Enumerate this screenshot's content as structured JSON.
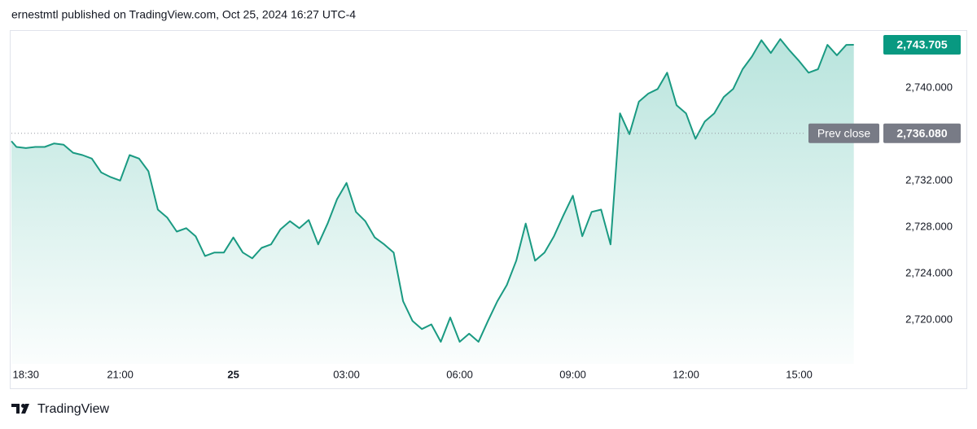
{
  "header": "ernestmtl published on TradingView.com, Oct 25, 2024 16:27 UTC-4",
  "footer": "TradingView",
  "chart_data": {
    "type": "area",
    "color": "#1a9a82",
    "x": [
      "18:07",
      "18:15",
      "18:30",
      "18:45",
      "19:00",
      "19:15",
      "19:30",
      "19:45",
      "20:00",
      "20:15",
      "20:30",
      "20:45",
      "21:00",
      "21:15",
      "21:30",
      "21:45",
      "22:00",
      "22:15",
      "22:30",
      "22:45",
      "23:00",
      "23:15",
      "23:30",
      "23:45",
      "00:00",
      "00:15",
      "00:30",
      "00:45",
      "01:00",
      "01:15",
      "01:30",
      "01:45",
      "02:00",
      "02:15",
      "02:30",
      "02:45",
      "03:00",
      "03:15",
      "03:30",
      "03:45",
      "04:00",
      "04:15",
      "04:30",
      "04:45",
      "05:00",
      "05:15",
      "05:30",
      "05:45",
      "06:00",
      "06:15",
      "06:30",
      "06:45",
      "07:00",
      "07:15",
      "07:30",
      "07:45",
      "08:00",
      "08:15",
      "08:30",
      "08:45",
      "09:00",
      "09:15",
      "09:30",
      "09:45",
      "10:00",
      "10:15",
      "10:30",
      "10:45",
      "11:00",
      "11:15",
      "11:30",
      "11:45",
      "12:00",
      "12:15",
      "12:30",
      "12:45",
      "13:00",
      "13:15",
      "13:30",
      "13:45",
      "14:00",
      "14:15",
      "14:30",
      "14:45",
      "15:00",
      "15:15",
      "15:30",
      "15:45",
      "16:00",
      "16:15",
      "16:27"
    ],
    "values": [
      2735.4,
      2734.9,
      2734.8,
      2734.9,
      2734.9,
      2735.2,
      2735.1,
      2734.4,
      2734.2,
      2733.9,
      2732.7,
      2732.3,
      2732.0,
      2734.2,
      2733.9,
      2732.8,
      2729.5,
      2728.8,
      2727.6,
      2727.9,
      2727.2,
      2725.5,
      2725.8,
      2725.8,
      2727.1,
      2725.8,
      2725.3,
      2726.2,
      2726.5,
      2727.8,
      2728.5,
      2727.9,
      2728.6,
      2726.5,
      2728.3,
      2730.4,
      2731.8,
      2729.3,
      2728.5,
      2727.1,
      2726.5,
      2725.8,
      2721.6,
      2719.9,
      2719.2,
      2719.6,
      2718.1,
      2720.2,
      2718.1,
      2718.8,
      2718.1,
      2719.9,
      2721.6,
      2723.0,
      2725.1,
      2728.3,
      2725.1,
      2725.8,
      2727.2,
      2729.0,
      2730.7,
      2727.2,
      2729.3,
      2729.5,
      2726.5,
      2737.8,
      2736.0,
      2738.8,
      2739.5,
      2739.9,
      2741.3,
      2738.5,
      2737.8,
      2735.6,
      2737.1,
      2737.8,
      2739.2,
      2739.9,
      2741.6,
      2742.7,
      2744.1,
      2743.0,
      2744.2,
      2743.2,
      2742.3,
      2741.3,
      2741.6,
      2743.7,
      2742.8,
      2743.7,
      2743.705
    ],
    "last_label": "2,743.705",
    "prev_close": {
      "name": "Prev close",
      "value": 2736.08,
      "label": "2,736.080"
    },
    "xlim": [
      "18:07",
      "17:01"
    ],
    "xticks": [
      "18:30",
      "21:00",
      {
        "value": "00:00",
        "label": "25"
      },
      "03:00",
      "06:00",
      "09:00",
      "12:00",
      "15:00"
    ],
    "ylim": [
      2716.2,
      2744.9
    ],
    "yticks": [
      {
        "value": 2720,
        "label": "2,720.000"
      },
      {
        "value": 2724,
        "label": "2,724.000"
      },
      {
        "value": 2728,
        "label": "2,728.000"
      },
      {
        "value": 2732,
        "label": "2,732.000"
      },
      {
        "value": 2740,
        "label": "2,740.000"
      }
    ]
  }
}
